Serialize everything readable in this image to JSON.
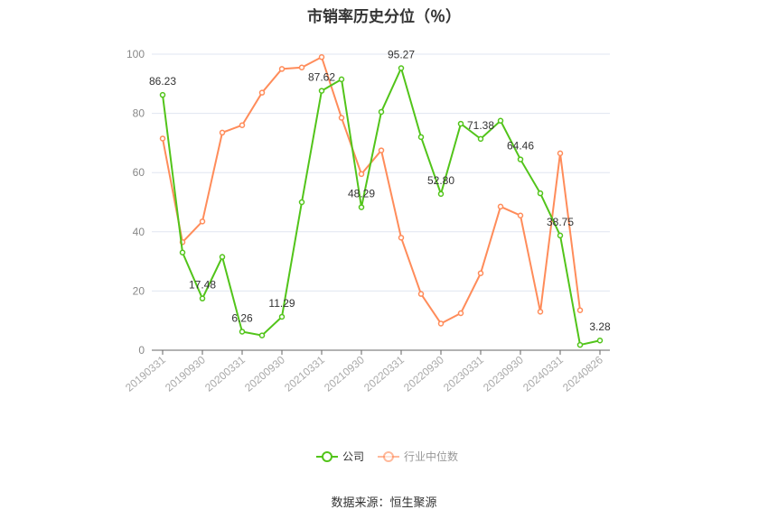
{
  "chart_data": {
    "type": "line",
    "title": "市销率历史分位（％）",
    "source": "数据来源：恒生聚源",
    "ylim": [
      0,
      100
    ],
    "yticks": [
      0,
      20,
      40,
      60,
      80,
      100
    ],
    "grid": true,
    "legend_placement": "bottom",
    "x": [
      "20190331",
      "20190630",
      "20190930",
      "20191231",
      "20200331",
      "20200630",
      "20200930",
      "20201231",
      "20210331",
      "20210630",
      "20210930",
      "20211231",
      "20220331",
      "20220630",
      "20220930",
      "20221231",
      "20230331",
      "20230630",
      "20230930",
      "20231231",
      "20240331",
      "20240630",
      "20240826"
    ],
    "xtick_labels": [
      "20190331",
      "20190930",
      "20200331",
      "20200930",
      "20210331",
      "20210930",
      "20220331",
      "20220930",
      "20230331",
      "20230930",
      "20240331",
      "20240826"
    ],
    "series": [
      {
        "name": "公司",
        "color": "#52c41a",
        "values": [
          86.23,
          33,
          17.48,
          31.5,
          6.26,
          5,
          11.29,
          50,
          87.62,
          91.5,
          48.29,
          80.5,
          95.27,
          72,
          52.8,
          76.5,
          71.38,
          77.5,
          64.46,
          53,
          38.75,
          1.8,
          3.28
        ],
        "labels": {
          "0": "86.23",
          "2": "17.48",
          "4": "6.26",
          "6": "11.29",
          "8": "87.62",
          "10": "48.29",
          "12": "95.27",
          "14": "52.80",
          "16": "71.38",
          "18": "64.46",
          "20": "38.75",
          "22": "3.28"
        }
      },
      {
        "name": "行业中位数",
        "color": "#ff8c5a",
        "values": [
          71.5,
          36.5,
          43.5,
          73.5,
          76,
          87,
          95,
          95.5,
          99,
          78.5,
          59.5,
          67.5,
          38,
          19,
          9,
          12.5,
          26,
          48.5,
          45.5,
          13,
          66.5,
          13.5,
          null
        ]
      }
    ]
  }
}
